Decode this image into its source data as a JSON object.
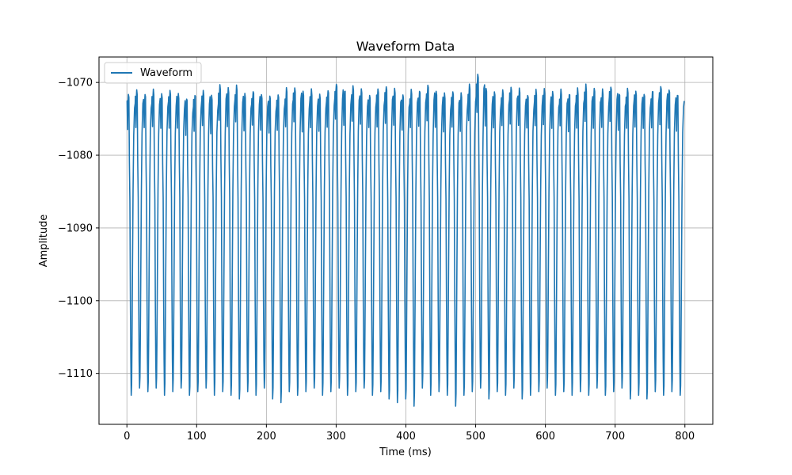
{
  "chart_data": {
    "type": "line",
    "title": "Waveform Data",
    "xlabel": "Time (ms)",
    "ylabel": "Amplitude",
    "xlim": [
      -40,
      840
    ],
    "ylim": [
      -1117,
      -1066.5
    ],
    "x_ticks": [
      0,
      100,
      200,
      300,
      400,
      500,
      600,
      700,
      800
    ],
    "x_tick_labels": [
      "0",
      "100",
      "200",
      "300",
      "400",
      "500",
      "600",
      "700",
      "800"
    ],
    "y_ticks": [
      -1110,
      -1100,
      -1090,
      -1080,
      -1070
    ],
    "y_tick_labels": [
      "−1110",
      "−1100",
      "−1090",
      "−1080",
      "−1070"
    ],
    "grid": true,
    "legend_position": "upper-left",
    "series": [
      {
        "name": "Waveform",
        "color": "#1f77b4",
        "x_start": 0,
        "x_end": 799,
        "cycles": 67,
        "peak_values": [
          -1071.5,
          -1071.0,
          -1071.5,
          -1071.0,
          -1071.5,
          -1071.0,
          -1071.5,
          -1072.0,
          -1071.5,
          -1071.0,
          -1072.0,
          -1070.5,
          -1071.0,
          -1070.5,
          -1071.5,
          -1071.0,
          -1071.5,
          -1072.0,
          -1071.5,
          -1071.0,
          -1070.5,
          -1071.5,
          -1071.0,
          -1071.5,
          -1071.0,
          -1070.0,
          -1071.0,
          -1070.5,
          -1071.0,
          -1071.5,
          -1071.0,
          -1070.5,
          -1071.0,
          -1071.5,
          -1071.0,
          -1071.0,
          -1070.5,
          -1071.0,
          -1071.5,
          -1071.0,
          -1071.5,
          -1070.5,
          -1069.0,
          -1071.0,
          -1071.5,
          -1071.0,
          -1070.5,
          -1071.0,
          -1071.5,
          -1071.0,
          -1071.0,
          -1071.5,
          -1071.0,
          -1071.5,
          -1071.0,
          -1070.5,
          -1071.0,
          -1071.0,
          -1070.5,
          -1071.5,
          -1071.0,
          -1071.0,
          -1071.5,
          -1071.0,
          -1070.5,
          -1071.0,
          -1071.5
        ],
        "trough_values": [
          -1113.0,
          -1112.0,
          -1112.5,
          -1112.0,
          -1113.0,
          -1112.5,
          -1112.0,
          -1113.0,
          -1112.5,
          -1112.0,
          -1113.0,
          -1112.5,
          -1113.0,
          -1113.5,
          -1112.5,
          -1113.0,
          -1112.0,
          -1113.5,
          -1114.0,
          -1112.5,
          -1113.0,
          -1112.5,
          -1112.0,
          -1113.0,
          -1112.5,
          -1112.0,
          -1113.0,
          -1112.5,
          -1112.0,
          -1113.0,
          -1112.5,
          -1113.5,
          -1114.0,
          -1113.5,
          -1114.5,
          -1112.0,
          -1113.0,
          -1112.5,
          -1113.0,
          -1114.5,
          -1113.0,
          -1112.5,
          -1112.0,
          -1113.5,
          -1112.5,
          -1113.0,
          -1112.0,
          -1113.5,
          -1113.0,
          -1112.5,
          -1112.0,
          -1113.0,
          -1112.5,
          -1113.0,
          -1112.5,
          -1113.0,
          -1112.0,
          -1113.0,
          -1112.5,
          -1112.0,
          -1113.5,
          -1113.0,
          -1113.5,
          -1112.5,
          -1113.0,
          -1112.5,
          -1113.0
        ]
      }
    ]
  }
}
